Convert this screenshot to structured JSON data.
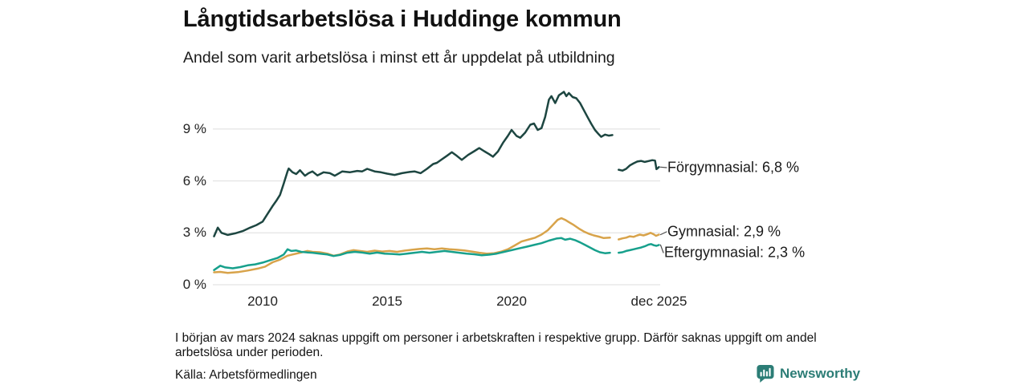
{
  "header": {
    "title": "Långtidsarbetslösa i Huddinge kommun",
    "subtitle": "Andel som varit arbetslösa i minst ett år uppdelat på utbildning"
  },
  "footer": {
    "note": "I början av mars 2024 saknas uppgift om personer i arbetskraften i respektive grupp. Därför saknas uppgift om andel arbetslösa under perioden.",
    "source": "Källa: Arbetsförmedlingen",
    "brand": "Newsworthy",
    "brand_color": "#2c7d76"
  },
  "chart_data": {
    "type": "line",
    "title": "Långtidsarbetslösa i Huddinge kommun",
    "subtitle": "Andel som varit arbetslösa i minst ett år uppdelat på utbildning",
    "unit": "%",
    "xlim": [
      2008.0,
      2026.0
    ],
    "ylim": [
      0,
      11.8
    ],
    "grid": true,
    "grid_color": "#dedede",
    "legend_position": "right-end-labels",
    "gap_note": "Series interrupted around March 2024 (missing labour-force data)",
    "y_ticks": [
      {
        "value": 0,
        "label": "0 %"
      },
      {
        "value": 3,
        "label": "3 %"
      },
      {
        "value": 6,
        "label": "6 %"
      },
      {
        "value": 9,
        "label": "9 %"
      }
    ],
    "x_ticks": [
      {
        "x": 2010,
        "label": "2010"
      },
      {
        "x": 2015,
        "label": "2015"
      },
      {
        "x": 2020,
        "label": "2020"
      },
      {
        "x": 2025.92,
        "label": "dec 2025"
      }
    ],
    "series": [
      {
        "name": "Förgymnasial",
        "latest_value": 6.8,
        "end_label": "Förgymnasial: 6,8 %",
        "color": "#1d4641",
        "segments": [
          [
            [
              2008.05,
              2.8
            ],
            [
              2008.2,
              3.3
            ],
            [
              2008.35,
              3.0
            ],
            [
              2008.6,
              2.88
            ],
            [
              2008.9,
              2.97
            ],
            [
              2009.2,
              3.1
            ],
            [
              2009.5,
              3.3
            ],
            [
              2009.75,
              3.45
            ],
            [
              2010.0,
              3.65
            ],
            [
              2010.2,
              4.1
            ],
            [
              2010.4,
              4.55
            ],
            [
              2010.55,
              4.85
            ],
            [
              2010.7,
              5.2
            ],
            [
              2010.85,
              5.85
            ],
            [
              2011.0,
              6.55
            ],
            [
              2011.05,
              6.72
            ],
            [
              2011.2,
              6.5
            ],
            [
              2011.35,
              6.4
            ],
            [
              2011.5,
              6.62
            ],
            [
              2011.7,
              6.3
            ],
            [
              2011.85,
              6.45
            ],
            [
              2012.0,
              6.55
            ],
            [
              2012.2,
              6.32
            ],
            [
              2012.45,
              6.5
            ],
            [
              2012.7,
              6.45
            ],
            [
              2012.9,
              6.3
            ],
            [
              2013.2,
              6.55
            ],
            [
              2013.5,
              6.5
            ],
            [
              2013.8,
              6.58
            ],
            [
              2014.0,
              6.55
            ],
            [
              2014.2,
              6.7
            ],
            [
              2014.5,
              6.55
            ],
            [
              2014.75,
              6.5
            ],
            [
              2015.0,
              6.42
            ],
            [
              2015.3,
              6.35
            ],
            [
              2015.6,
              6.45
            ],
            [
              2015.9,
              6.52
            ],
            [
              2016.1,
              6.55
            ],
            [
              2016.35,
              6.45
            ],
            [
              2016.6,
              6.7
            ],
            [
              2016.85,
              6.98
            ],
            [
              2017.0,
              7.05
            ],
            [
              2017.2,
              7.25
            ],
            [
              2017.4,
              7.45
            ],
            [
              2017.6,
              7.66
            ],
            [
              2017.8,
              7.45
            ],
            [
              2018.0,
              7.22
            ],
            [
              2018.25,
              7.5
            ],
            [
              2018.5,
              7.72
            ],
            [
              2018.7,
              7.9
            ],
            [
              2018.9,
              7.72
            ],
            [
              2019.1,
              7.55
            ],
            [
              2019.25,
              7.4
            ],
            [
              2019.45,
              7.7
            ],
            [
              2019.65,
              8.2
            ],
            [
              2019.85,
              8.6
            ],
            [
              2020.0,
              8.95
            ],
            [
              2020.2,
              8.6
            ],
            [
              2020.35,
              8.5
            ],
            [
              2020.55,
              8.8
            ],
            [
              2020.75,
              9.25
            ],
            [
              2020.9,
              9.32
            ],
            [
              2021.05,
              8.95
            ],
            [
              2021.2,
              9.05
            ],
            [
              2021.35,
              9.7
            ],
            [
              2021.5,
              10.7
            ],
            [
              2021.6,
              10.9
            ],
            [
              2021.75,
              10.5
            ],
            [
              2021.9,
              10.95
            ],
            [
              2022.0,
              11.05
            ],
            [
              2022.1,
              11.15
            ],
            [
              2022.2,
              10.9
            ],
            [
              2022.3,
              11.08
            ],
            [
              2022.45,
              10.85
            ],
            [
              2022.6,
              10.78
            ],
            [
              2022.75,
              10.5
            ],
            [
              2022.9,
              10.1
            ],
            [
              2023.05,
              9.7
            ],
            [
              2023.2,
              9.3
            ],
            [
              2023.35,
              8.95
            ],
            [
              2023.5,
              8.7
            ],
            [
              2023.6,
              8.55
            ],
            [
              2023.75,
              8.68
            ],
            [
              2023.9,
              8.62
            ],
            [
              2024.05,
              8.65
            ]
          ],
          [
            [
              2024.3,
              6.65
            ],
            [
              2024.45,
              6.6
            ],
            [
              2024.6,
              6.7
            ],
            [
              2024.75,
              6.9
            ],
            [
              2024.9,
              7.02
            ],
            [
              2025.05,
              7.12
            ],
            [
              2025.2,
              7.16
            ],
            [
              2025.35,
              7.1
            ],
            [
              2025.5,
              7.15
            ],
            [
              2025.65,
              7.2
            ],
            [
              2025.76,
              7.18
            ],
            [
              2025.82,
              6.68
            ],
            [
              2025.92,
              6.8
            ]
          ]
        ]
      },
      {
        "name": "Gymnasial",
        "latest_value": 2.9,
        "end_label": "Gymnasial: 2,9 %",
        "color": "#d8a34a",
        "segments": [
          [
            [
              2008.05,
              0.72
            ],
            [
              2008.3,
              0.74
            ],
            [
              2008.6,
              0.68
            ],
            [
              2009.0,
              0.73
            ],
            [
              2009.4,
              0.82
            ],
            [
              2009.8,
              0.93
            ],
            [
              2010.1,
              1.05
            ],
            [
              2010.4,
              1.3
            ],
            [
              2010.7,
              1.45
            ],
            [
              2011.0,
              1.68
            ],
            [
              2011.2,
              1.75
            ],
            [
              2011.5,
              1.85
            ],
            [
              2011.8,
              1.95
            ],
            [
              2012.0,
              1.9
            ],
            [
              2012.3,
              1.88
            ],
            [
              2012.6,
              1.8
            ],
            [
              2012.85,
              1.68
            ],
            [
              2013.1,
              1.75
            ],
            [
              2013.4,
              1.92
            ],
            [
              2013.65,
              2.0
            ],
            [
              2013.9,
              1.95
            ],
            [
              2014.2,
              1.9
            ],
            [
              2014.5,
              1.97
            ],
            [
              2014.8,
              1.92
            ],
            [
              2015.1,
              1.95
            ],
            [
              2015.4,
              1.9
            ],
            [
              2015.7,
              1.97
            ],
            [
              2016.0,
              2.02
            ],
            [
              2016.3,
              2.07
            ],
            [
              2016.6,
              2.1
            ],
            [
              2016.9,
              2.05
            ],
            [
              2017.2,
              2.1
            ],
            [
              2017.5,
              2.05
            ],
            [
              2017.8,
              2.02
            ],
            [
              2018.1,
              1.98
            ],
            [
              2018.4,
              1.92
            ],
            [
              2018.7,
              1.85
            ],
            [
              2019.0,
              1.8
            ],
            [
              2019.3,
              1.82
            ],
            [
              2019.6,
              1.92
            ],
            [
              2019.85,
              2.05
            ],
            [
              2020.1,
              2.25
            ],
            [
              2020.4,
              2.5
            ],
            [
              2020.7,
              2.62
            ],
            [
              2020.95,
              2.72
            ],
            [
              2021.2,
              2.9
            ],
            [
              2021.45,
              3.15
            ],
            [
              2021.65,
              3.45
            ],
            [
              2021.85,
              3.75
            ],
            [
              2022.0,
              3.85
            ],
            [
              2022.15,
              3.75
            ],
            [
              2022.3,
              3.62
            ],
            [
              2022.5,
              3.45
            ],
            [
              2022.7,
              3.25
            ],
            [
              2022.9,
              3.08
            ],
            [
              2023.1,
              2.95
            ],
            [
              2023.3,
              2.85
            ],
            [
              2023.5,
              2.78
            ],
            [
              2023.7,
              2.7
            ],
            [
              2023.95,
              2.72
            ]
          ],
          [
            [
              2024.3,
              2.62
            ],
            [
              2024.45,
              2.68
            ],
            [
              2024.6,
              2.72
            ],
            [
              2024.75,
              2.8
            ],
            [
              2024.9,
              2.77
            ],
            [
              2025.05,
              2.85
            ],
            [
              2025.15,
              2.9
            ],
            [
              2025.3,
              2.85
            ],
            [
              2025.45,
              2.92
            ],
            [
              2025.58,
              3.0
            ],
            [
              2025.7,
              2.92
            ],
            [
              2025.8,
              2.83
            ],
            [
              2025.92,
              2.9
            ]
          ]
        ]
      },
      {
        "name": "Eftergymnasial",
        "latest_value": 2.3,
        "end_label": "Eftergymnasial: 2,3 %",
        "color": "#17a08c",
        "segments": [
          [
            [
              2008.05,
              0.85
            ],
            [
              2008.3,
              1.1
            ],
            [
              2008.5,
              1.0
            ],
            [
              2008.8,
              0.95
            ],
            [
              2009.1,
              1.02
            ],
            [
              2009.4,
              1.12
            ],
            [
              2009.7,
              1.18
            ],
            [
              2010.0,
              1.28
            ],
            [
              2010.3,
              1.42
            ],
            [
              2010.6,
              1.55
            ],
            [
              2010.85,
              1.75
            ],
            [
              2011.0,
              2.05
            ],
            [
              2011.15,
              1.95
            ],
            [
              2011.35,
              1.98
            ],
            [
              2011.55,
              1.9
            ],
            [
              2011.8,
              1.87
            ],
            [
              2012.0,
              1.85
            ],
            [
              2012.3,
              1.8
            ],
            [
              2012.6,
              1.75
            ],
            [
              2012.85,
              1.66
            ],
            [
              2013.1,
              1.72
            ],
            [
              2013.4,
              1.85
            ],
            [
              2013.7,
              1.9
            ],
            [
              2014.0,
              1.86
            ],
            [
              2014.3,
              1.8
            ],
            [
              2014.6,
              1.86
            ],
            [
              2014.9,
              1.8
            ],
            [
              2015.2,
              1.78
            ],
            [
              2015.5,
              1.75
            ],
            [
              2015.8,
              1.8
            ],
            [
              2016.1,
              1.85
            ],
            [
              2016.4,
              1.9
            ],
            [
              2016.7,
              1.85
            ],
            [
              2017.0,
              1.9
            ],
            [
              2017.3,
              1.95
            ],
            [
              2017.6,
              1.9
            ],
            [
              2017.9,
              1.85
            ],
            [
              2018.2,
              1.8
            ],
            [
              2018.5,
              1.76
            ],
            [
              2018.8,
              1.7
            ],
            [
              2019.1,
              1.74
            ],
            [
              2019.4,
              1.8
            ],
            [
              2019.7,
              1.9
            ],
            [
              2020.0,
              2.0
            ],
            [
              2020.3,
              2.1
            ],
            [
              2020.6,
              2.2
            ],
            [
              2020.9,
              2.3
            ],
            [
              2021.2,
              2.4
            ],
            [
              2021.5,
              2.55
            ],
            [
              2021.8,
              2.67
            ],
            [
              2022.0,
              2.7
            ],
            [
              2022.15,
              2.6
            ],
            [
              2022.35,
              2.66
            ],
            [
              2022.55,
              2.58
            ],
            [
              2022.75,
              2.45
            ],
            [
              2022.95,
              2.3
            ],
            [
              2023.15,
              2.15
            ],
            [
              2023.35,
              2.0
            ],
            [
              2023.55,
              1.88
            ],
            [
              2023.75,
              1.82
            ],
            [
              2023.95,
              1.85
            ]
          ],
          [
            [
              2024.3,
              1.85
            ],
            [
              2024.45,
              1.88
            ],
            [
              2024.6,
              1.95
            ],
            [
              2024.75,
              2.0
            ],
            [
              2024.9,
              2.05
            ],
            [
              2025.05,
              2.1
            ],
            [
              2025.2,
              2.15
            ],
            [
              2025.35,
              2.22
            ],
            [
              2025.5,
              2.32
            ],
            [
              2025.6,
              2.35
            ],
            [
              2025.72,
              2.28
            ],
            [
              2025.82,
              2.25
            ],
            [
              2025.92,
              2.3
            ]
          ]
        ]
      }
    ]
  }
}
